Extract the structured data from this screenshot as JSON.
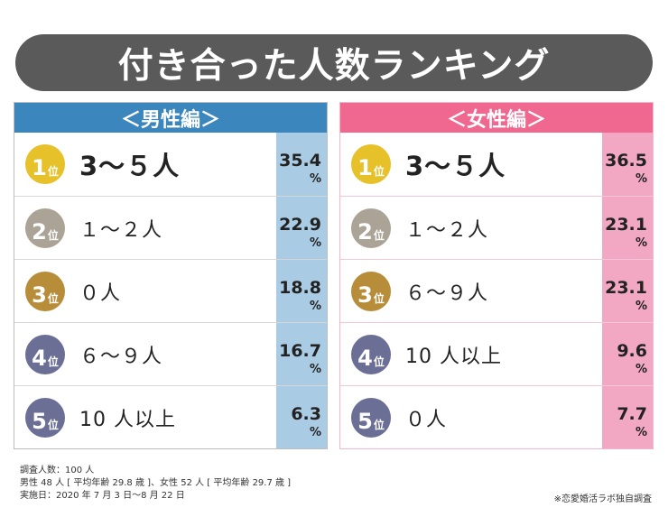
{
  "title": "付き合った人数ランキング",
  "rank_suffix": "位",
  "percent_unit": "%",
  "colors": {
    "banner": "#5a5a5a",
    "men_header": "#3a86bd",
    "men_pct_bg": "#a9cbe3",
    "women_header": "#f0688f",
    "women_pct_bg": "#f2a7c2",
    "rank1": "#e6c12a",
    "rank2": "#aca397",
    "rank3": "#b88d3a",
    "rank4": "#6b6f95",
    "rank5": "#6b6f95"
  },
  "chart_data": [
    {
      "type": "table",
      "title": "＜男性編＞",
      "categories": [
        "3〜５人",
        "１〜２人",
        "０人",
        "６〜９人",
        "10 人以上"
      ],
      "ranks": [
        1,
        2,
        3,
        4,
        5
      ],
      "values": [
        35.4,
        22.9,
        18.8,
        16.7,
        6.3
      ],
      "value_labels": [
        "35.4",
        "22.9",
        "18.8",
        "16.7",
        "6.3"
      ]
    },
    {
      "type": "table",
      "title": "＜女性編＞",
      "categories": [
        "3〜５人",
        "１〜２人",
        "６〜９人",
        "10 人以上",
        "０人"
      ],
      "ranks": [
        1,
        2,
        3,
        4,
        5
      ],
      "values": [
        36.5,
        23.1,
        23.1,
        9.6,
        7.7
      ],
      "value_labels": [
        "36.5",
        "23.1",
        "23.1",
        "9.6",
        "7.7"
      ]
    }
  ],
  "notes": [
    "調査人数：100 人",
    "男性 48 人 [ 平均年齢 29.8 歳 ]、女性 52 人 [ 平均年齢 29.7 歳 ]",
    "実施日：2020 年 7 月 3 日〜8 月 22 日"
  ],
  "source": "※恋愛婚活ラボ独自調査"
}
